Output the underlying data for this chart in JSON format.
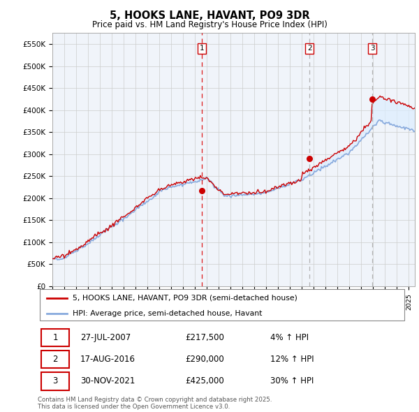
{
  "title": "5, HOOKS LANE, HAVANT, PO9 3DR",
  "subtitle": "Price paid vs. HM Land Registry's House Price Index (HPI)",
  "ylabel_ticks": [
    "£0",
    "£50K",
    "£100K",
    "£150K",
    "£200K",
    "£250K",
    "£300K",
    "£350K",
    "£400K",
    "£450K",
    "£500K",
    "£550K"
  ],
  "ytick_values": [
    0,
    50000,
    100000,
    150000,
    200000,
    250000,
    300000,
    350000,
    400000,
    450000,
    500000,
    550000
  ],
  "ylim": [
    0,
    575000
  ],
  "xlim_start": 1995.0,
  "xlim_end": 2025.5,
  "sale_dates": [
    2007.57,
    2016.63,
    2021.92
  ],
  "sale_prices": [
    217500,
    290000,
    425000
  ],
  "sale_labels": [
    "1",
    "2",
    "3"
  ],
  "vline_colors": [
    "#dd0000",
    "#aaaaaa",
    "#aaaaaa"
  ],
  "vline_styles": [
    "dashed",
    "dashed",
    "dashed"
  ],
  "sale_marker_color": "#cc0000",
  "hpi_line_color": "#88aadd",
  "price_line_color": "#cc0000",
  "fill_color": "#ddeeff",
  "background_color": "#ffffff",
  "grid_color": "#cccccc",
  "legend_entries": [
    "5, HOOKS LANE, HAVANT, PO9 3DR (semi-detached house)",
    "HPI: Average price, semi-detached house, Havant"
  ],
  "table_rows": [
    [
      "1",
      "27-JUL-2007",
      "£217,500",
      "4% ↑ HPI"
    ],
    [
      "2",
      "17-AUG-2016",
      "£290,000",
      "12% ↑ HPI"
    ],
    [
      "3",
      "30-NOV-2021",
      "£425,000",
      "30% ↑ HPI"
    ]
  ],
  "footnote": "Contains HM Land Registry data © Crown copyright and database right 2025.\nThis data is licensed under the Open Government Licence v3.0."
}
